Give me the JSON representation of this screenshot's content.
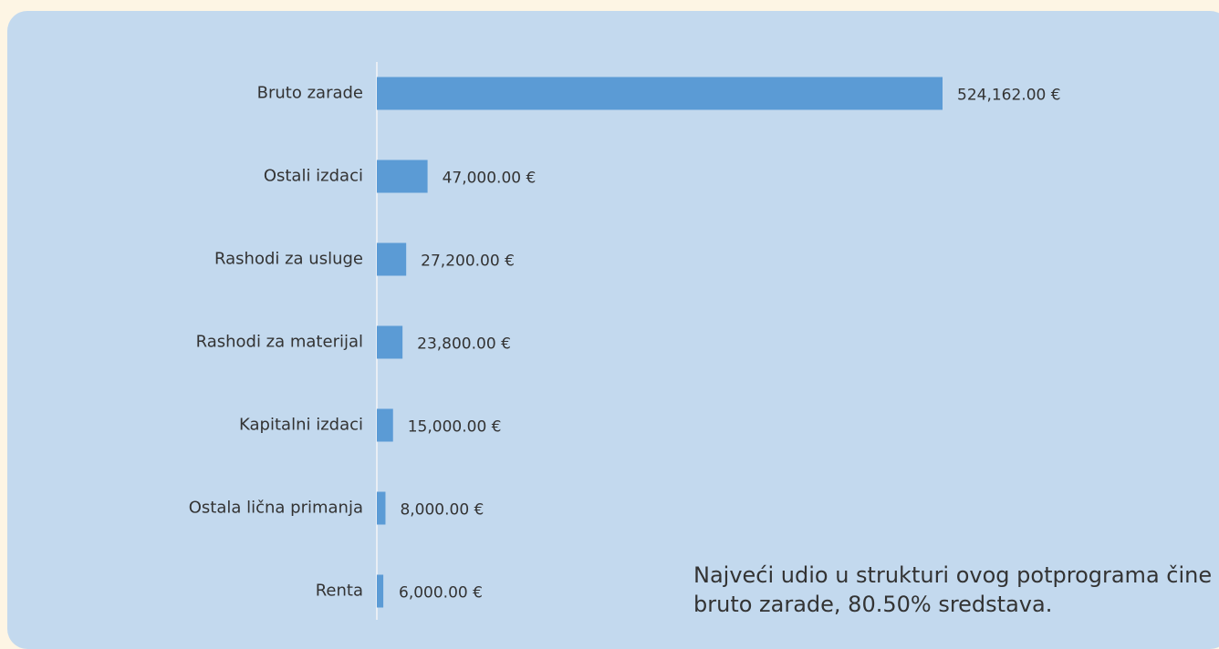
{
  "chart_data": {
    "type": "hbar",
    "categories": [
      "Bruto zarade",
      "Ostali izdaci",
      "Rashodi za usluge",
      "Rashodi za materijal",
      "Kapitalni izdaci",
      "Ostala lična primanja",
      "Renta"
    ],
    "values": [
      524162,
      47000,
      27200,
      23800,
      15000,
      8000,
      6000
    ],
    "value_labels": [
      "524,162.00 €",
      "47,000.00 €",
      "27,200.00 €",
      "23,800.00 €",
      "15,000.00 €",
      "8,000.00 €",
      "6,000.00 €"
    ],
    "color": "#5b9bd5",
    "annotation": "Najveći udio u strukturi ovog potprograma čine bruto zarade, 80.50% sredstava."
  }
}
